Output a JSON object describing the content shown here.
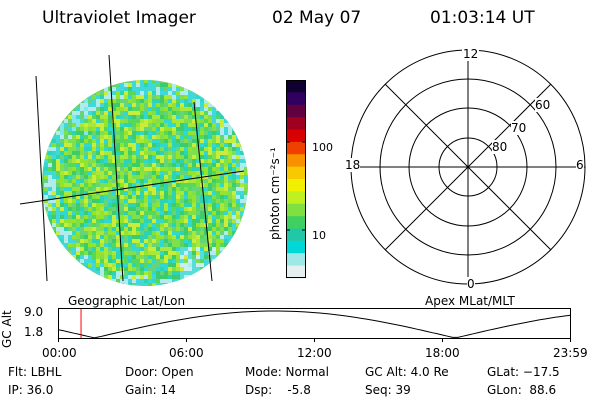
{
  "header": {
    "title": "Ultraviolet Imager",
    "date": "02 May 07",
    "time": "01:03:14 UT"
  },
  "colorbar": {
    "unit_label": "photon cm⁻²s⁻¹",
    "ticks": [
      "100",
      "10"
    ],
    "colors": [
      "#e6f0f0",
      "#a0e8e8",
      "#00d8d8",
      "#20c8a8",
      "#40d060",
      "#80e040",
      "#c0f020",
      "#f0f000",
      "#f8c800",
      "#f89000",
      "#f04000",
      "#d80000",
      "#a00020",
      "#600040",
      "#300060",
      "#100030"
    ]
  },
  "polar": {
    "mlt_labels": {
      "top": "12",
      "left": "18",
      "right": "6",
      "bottom": "0"
    },
    "lat_labels": [
      "60",
      "70",
      "80"
    ]
  },
  "timeline": {
    "axis_label": "GC Alt",
    "y_ticks": [
      "9.0",
      "1.8"
    ],
    "left_caption": "Geographic Lat/Lon",
    "right_caption": "Apex MLat/MLT",
    "x_ticks": [
      "00:00",
      "06:00",
      "12:00",
      "18:00",
      "23:59"
    ],
    "current_time_fraction": 0.044
  },
  "info": {
    "flt": "Flt: LBHL",
    "ip": "IP: 36.0",
    "door": "Door: Open",
    "gain": "Gain: 14",
    "mode": "Mode: Normal",
    "dsp": "Dsp:    -5.8",
    "gcalt": "GC Alt: 4.0 Re",
    "seq": "Seq: 39",
    "glat": "GLat: −17.5",
    "glon": "GLon:  88.6"
  },
  "colors": {
    "accent_marker": "#ff0000"
  }
}
